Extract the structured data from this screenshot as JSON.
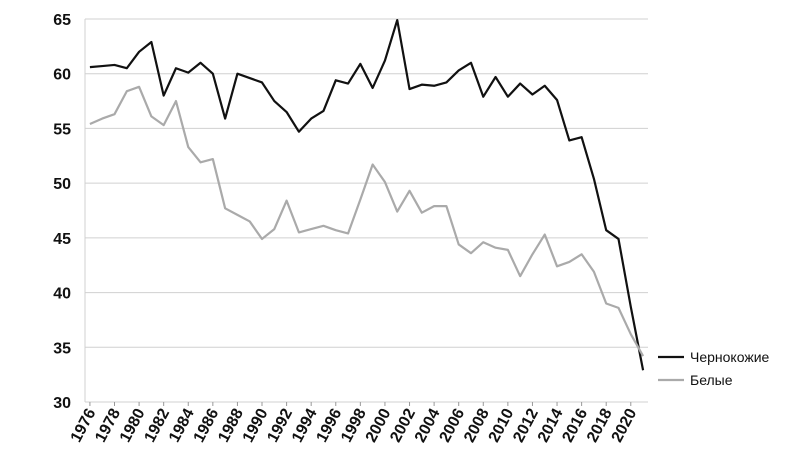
{
  "chart_data": {
    "type": "line",
    "x": [
      1976,
      1977,
      1978,
      1979,
      1980,
      1981,
      1982,
      1983,
      1984,
      1985,
      1986,
      1987,
      1988,
      1989,
      1990,
      1991,
      1992,
      1993,
      1994,
      1995,
      1996,
      1997,
      1998,
      1999,
      2000,
      2001,
      2002,
      2003,
      2004,
      2005,
      2006,
      2007,
      2008,
      2009,
      2010,
      2011,
      2012,
      2013,
      2014,
      2015,
      2016,
      2017,
      2018,
      2019,
      2020,
      2021
    ],
    "series": [
      {
        "name": "Чернокожие",
        "color": "#111111",
        "values": [
          60.6,
          60.7,
          60.8,
          60.5,
          62.0,
          62.9,
          58.0,
          60.5,
          60.1,
          61.0,
          60.0,
          55.9,
          60.0,
          59.6,
          59.2,
          57.5,
          56.5,
          54.7,
          55.9,
          56.6,
          59.4,
          59.1,
          60.9,
          58.7,
          61.2,
          64.9,
          58.6,
          59.0,
          58.9,
          59.2,
          60.3,
          61.0,
          57.9,
          59.7,
          57.9,
          59.1,
          58.1,
          58.9,
          57.6,
          53.9,
          54.2,
          50.4,
          45.7,
          44.9,
          38.7,
          32.9
        ]
      },
      {
        "name": "Белые",
        "color": "#aaaaaa",
        "values": [
          55.4,
          55.9,
          56.3,
          58.4,
          58.8,
          56.1,
          55.3,
          57.5,
          53.3,
          51.9,
          52.2,
          47.7,
          47.1,
          46.5,
          44.9,
          45.8,
          48.4,
          45.5,
          45.8,
          46.1,
          45.7,
          45.4,
          48.5,
          51.7,
          50.1,
          47.4,
          49.3,
          47.3,
          47.9,
          47.9,
          44.4,
          43.6,
          44.6,
          44.1,
          43.9,
          41.5,
          43.5,
          45.3,
          42.4,
          42.8,
          43.5,
          41.9,
          39.0,
          38.6,
          36.2,
          34.2
        ]
      }
    ],
    "xlim": [
      1975.6,
      2021.4
    ],
    "xticks": [
      1976,
      1978,
      1980,
      1982,
      1984,
      1986,
      1988,
      1990,
      1992,
      1994,
      1996,
      1998,
      2000,
      2002,
      2004,
      2006,
      2008,
      2010,
      2012,
      2014,
      2016,
      2018,
      2020
    ],
    "ylim": [
      30,
      65
    ],
    "yticks": [
      30,
      35,
      40,
      45,
      50,
      55,
      60,
      65
    ],
    "grid": true,
    "legend": "right"
  }
}
